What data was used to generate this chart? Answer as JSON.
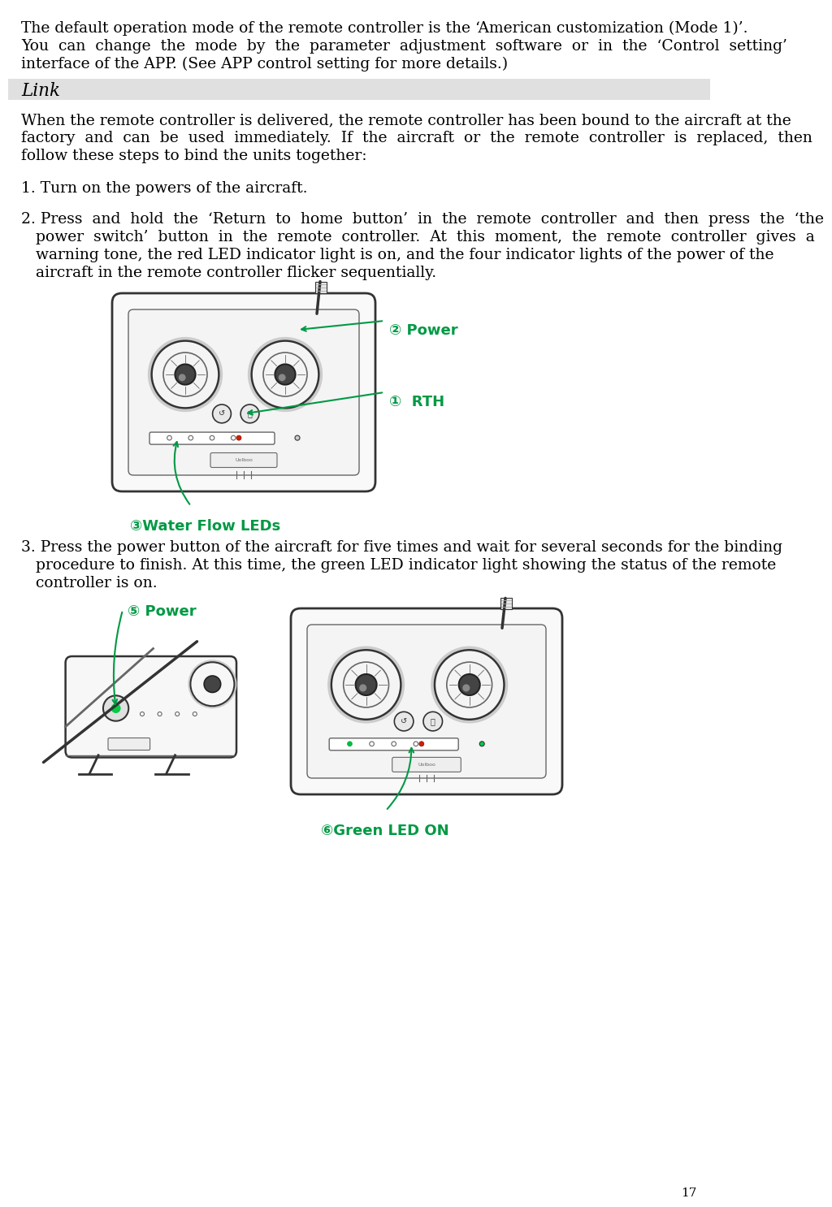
{
  "page_number": "17",
  "bg": "#ffffff",
  "link_bg": "#e0e0e0",
  "black": "#000000",
  "green": "#009944",
  "dark_gray": "#333333",
  "mid_gray": "#666666",
  "light_gray": "#aaaaaa",
  "fs_body": 13.5,
  "fs_link": 15.5,
  "fs_annot": 13.0,
  "fs_small": 11.0,
  "ml": 16,
  "ind": 34,
  "lh": 22,
  "para1": [
    "The default operation mode of the remote controller is the ‘American customization (Mode 1)’.",
    "You  can  change  the  mode  by  the  parameter  adjustment  software  or  in  the  ‘Control  setting’",
    "interface of the APP. (See APP control setting for more details.)"
  ],
  "link_label": "Link",
  "para2": [
    "When the remote controller is delivered, the remote controller has been bound to the aircraft at the",
    "factory  and  can  be  used  immediately.  If  the  aircraft  or  the  remote  controller  is  replaced,  then",
    "follow these steps to bind the units together:"
  ],
  "step1": "1. Turn on the powers of the aircraft.",
  "step2_first": "2. Press  and  hold  the  ‘Return  to  home  button’  in  the  remote  controller  and  then  press  the  ‘the",
  "step2_rest": [
    "power  switch’  button  in  the  remote  controller.  At  this  moment,  the  remote  controller  gives  a",
    "warning tone, the red LED indicator light is on, and the four indicator lights of the power of the",
    "aircraft in the remote controller flicker sequentially."
  ],
  "step3_first": "3. Press the power button of the aircraft for five times and wait for several seconds for the binding",
  "step3_rest": [
    "procedure to finish. At this time, the green LED indicator light showing the status of the remote",
    "controller is on."
  ],
  "lbl_power": "Power",
  "lbl_rth": "RTH",
  "lbl_wf": "Water Flow LEDs",
  "lbl_green": "Green LED ON",
  "c1": "①",
  "c2": "②",
  "c3": "③",
  "c5": "⑤",
  "c6": "⑥"
}
